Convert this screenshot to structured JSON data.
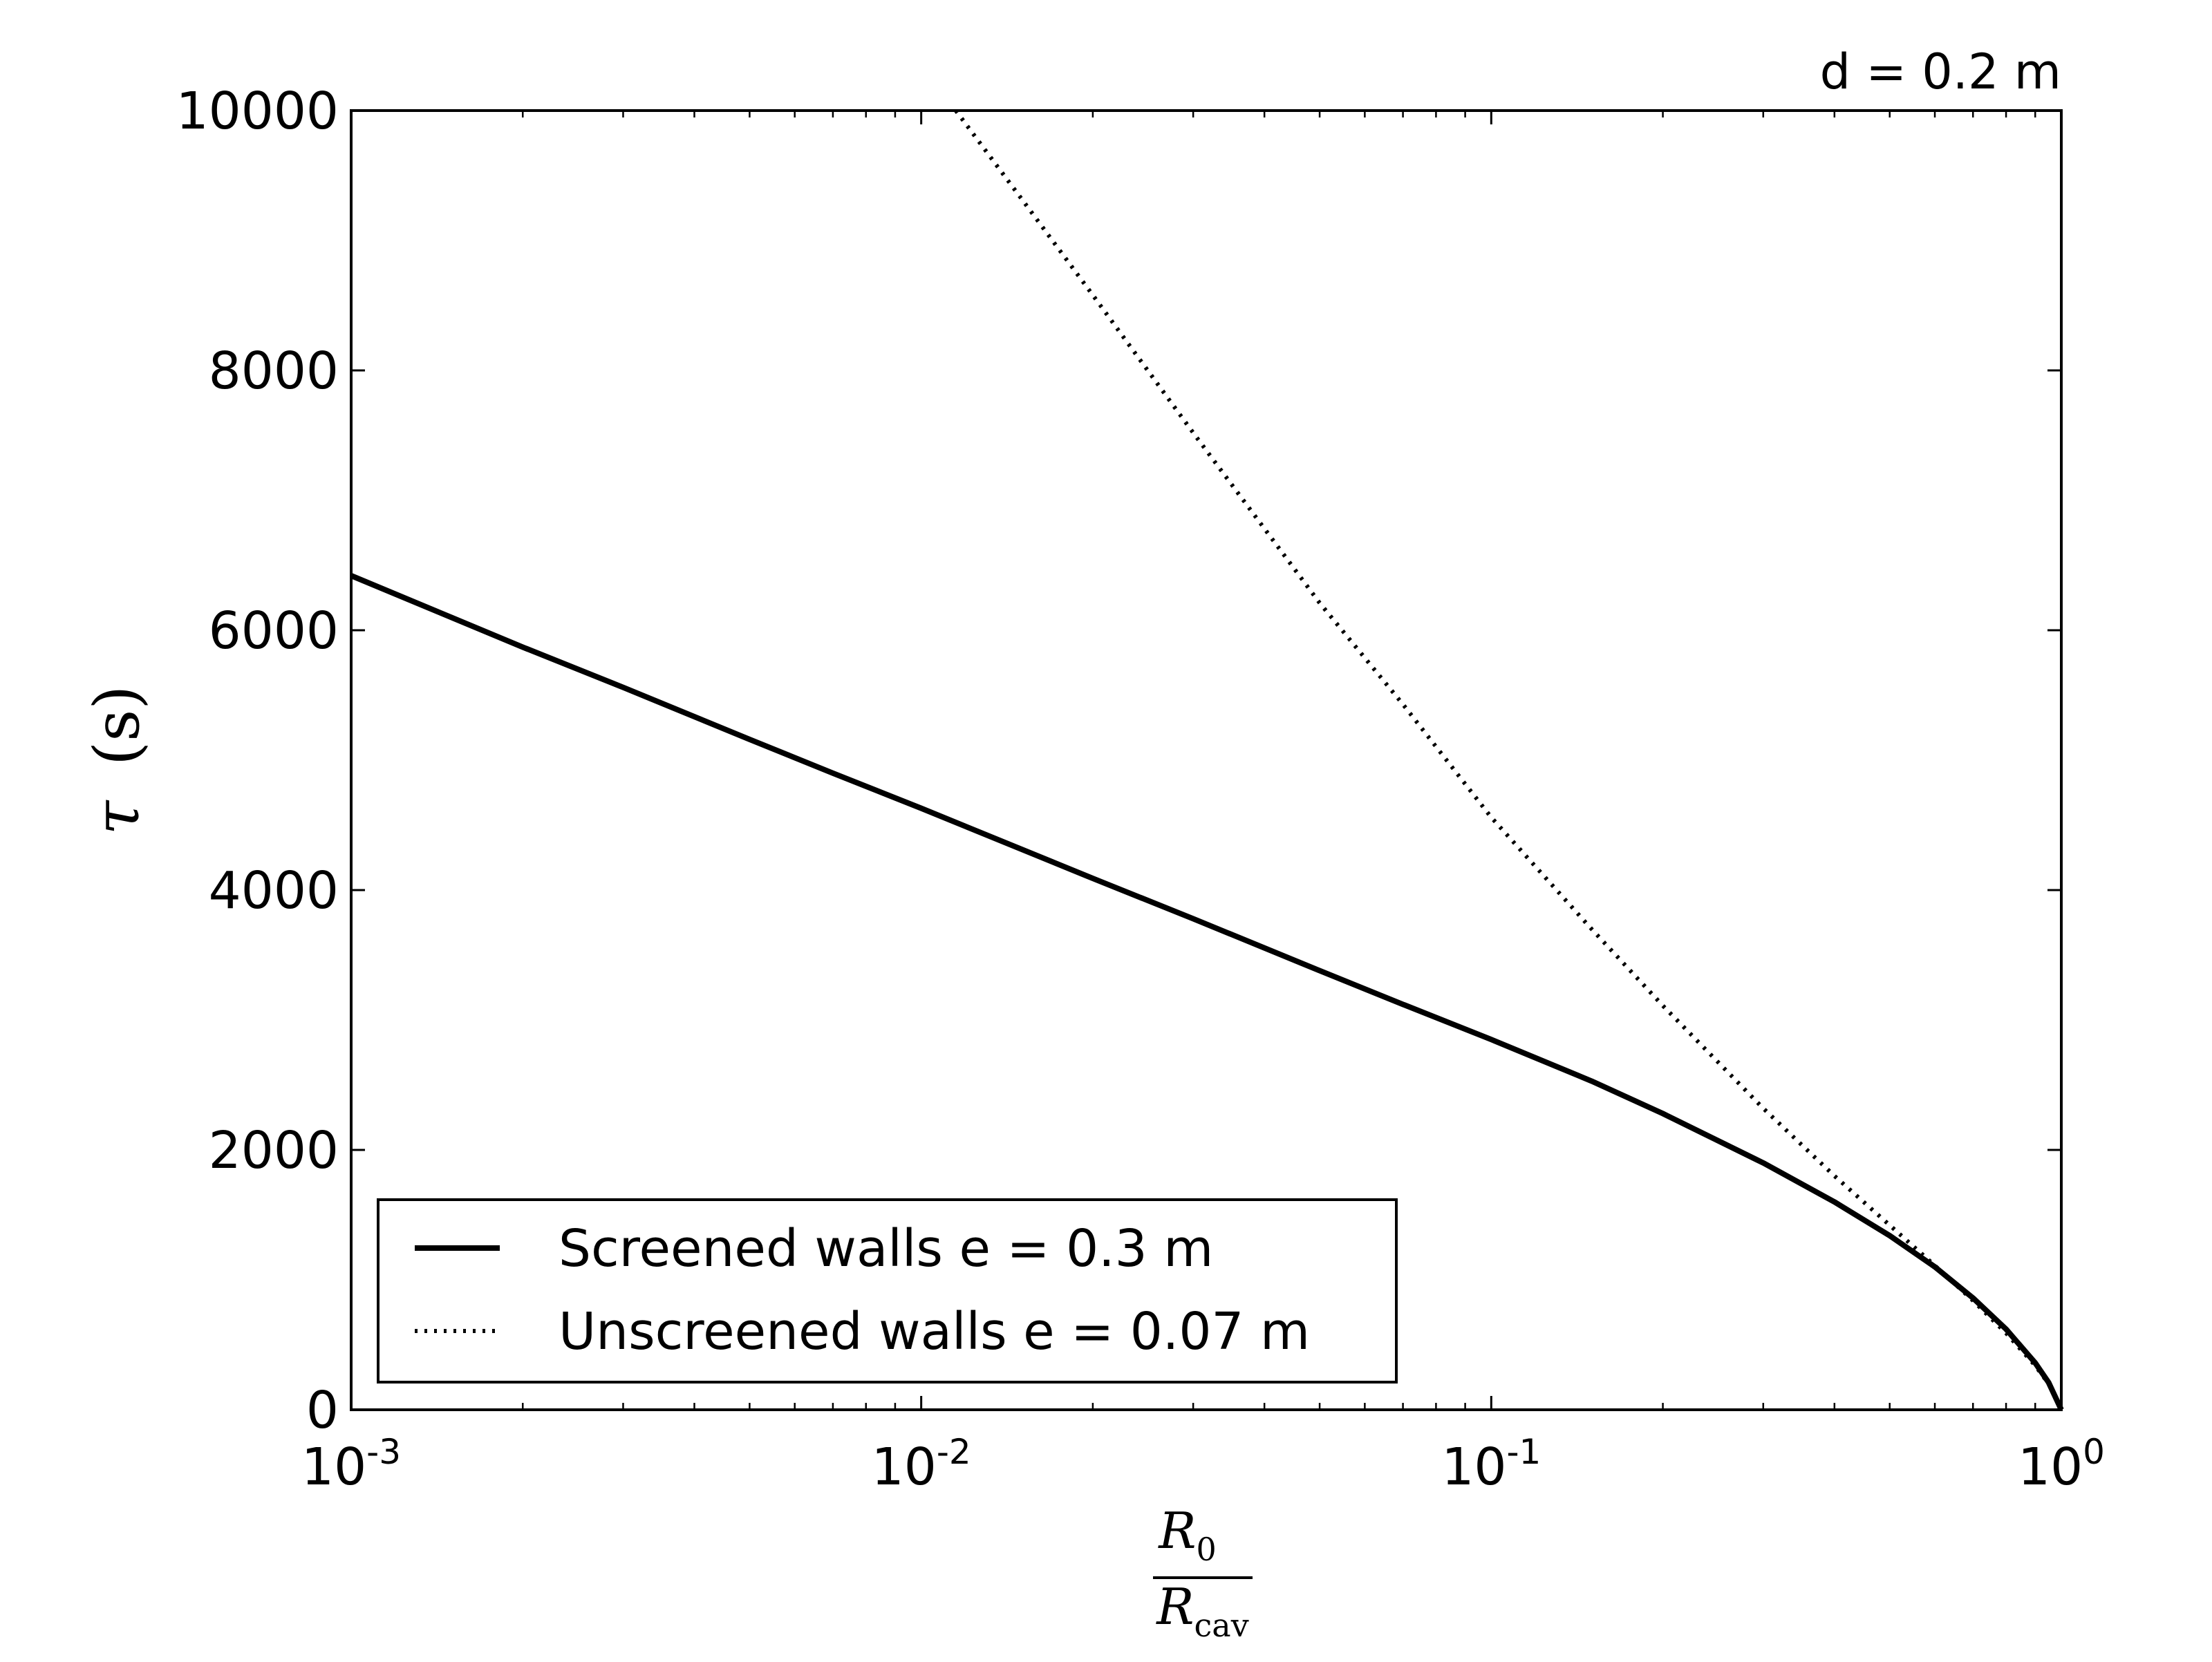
{
  "chart_data": {
    "type": "line",
    "annotation": "d = 0.2 m",
    "xscale": "log",
    "xlim": [
      0.001,
      1
    ],
    "ylim": [
      0,
      10000
    ],
    "grid": false,
    "legend_position": "lower-left",
    "x_tick_labels": [
      {
        "base": "10",
        "exp": "-3",
        "value": 0.001
      },
      {
        "base": "10",
        "exp": "-2",
        "value": 0.01
      },
      {
        "base": "10",
        "exp": "-1",
        "value": 0.1
      },
      {
        "base": "10",
        "exp": "0",
        "value": 1
      }
    ],
    "y_ticks": [
      0,
      2000,
      4000,
      6000,
      8000,
      10000
    ],
    "y_tick_labels": [
      "0",
      "2000",
      "4000",
      "6000",
      "8000",
      "10000"
    ],
    "ylabel": {
      "symbol": "τ",
      "unit": "(s)"
    },
    "xlabel": {
      "numerator": "R",
      "numerator_sub": "0",
      "denominator": "R",
      "denominator_sub": "cav"
    },
    "series": [
      {
        "name": "Screened walls e = 0.3 m",
        "style": "solid",
        "color": "#000000",
        "x": [
          0.001,
          0.002,
          0.003,
          0.005,
          0.007,
          0.01,
          0.02,
          0.03,
          0.05,
          0.07,
          0.1,
          0.15,
          0.2,
          0.3,
          0.4,
          0.5,
          0.6,
          0.7,
          0.8,
          0.9,
          0.95,
          1.0
        ],
        "y": [
          6420,
          5870,
          5560,
          5160,
          4900,
          4630,
          4090,
          3780,
          3380,
          3120,
          2850,
          2530,
          2280,
          1900,
          1600,
          1340,
          1100,
          860,
          620,
          360,
          210,
          0
        ]
      },
      {
        "name": "Unscreened walls e = 0.07 m",
        "style": "dotted",
        "color": "#000000",
        "x": [
          0.0115,
          0.015,
          0.02,
          0.03,
          0.05,
          0.07,
          0.1,
          0.15,
          0.2,
          0.3,
          0.4,
          0.5,
          0.6,
          0.7,
          0.8,
          0.9,
          0.95,
          1.0
        ],
        "y": [
          10000,
          9320,
          8580,
          7520,
          6210,
          5430,
          4560,
          3700,
          3110,
          2320,
          1800,
          1420,
          1110,
          840,
          590,
          340,
          200,
          0
        ]
      }
    ]
  }
}
